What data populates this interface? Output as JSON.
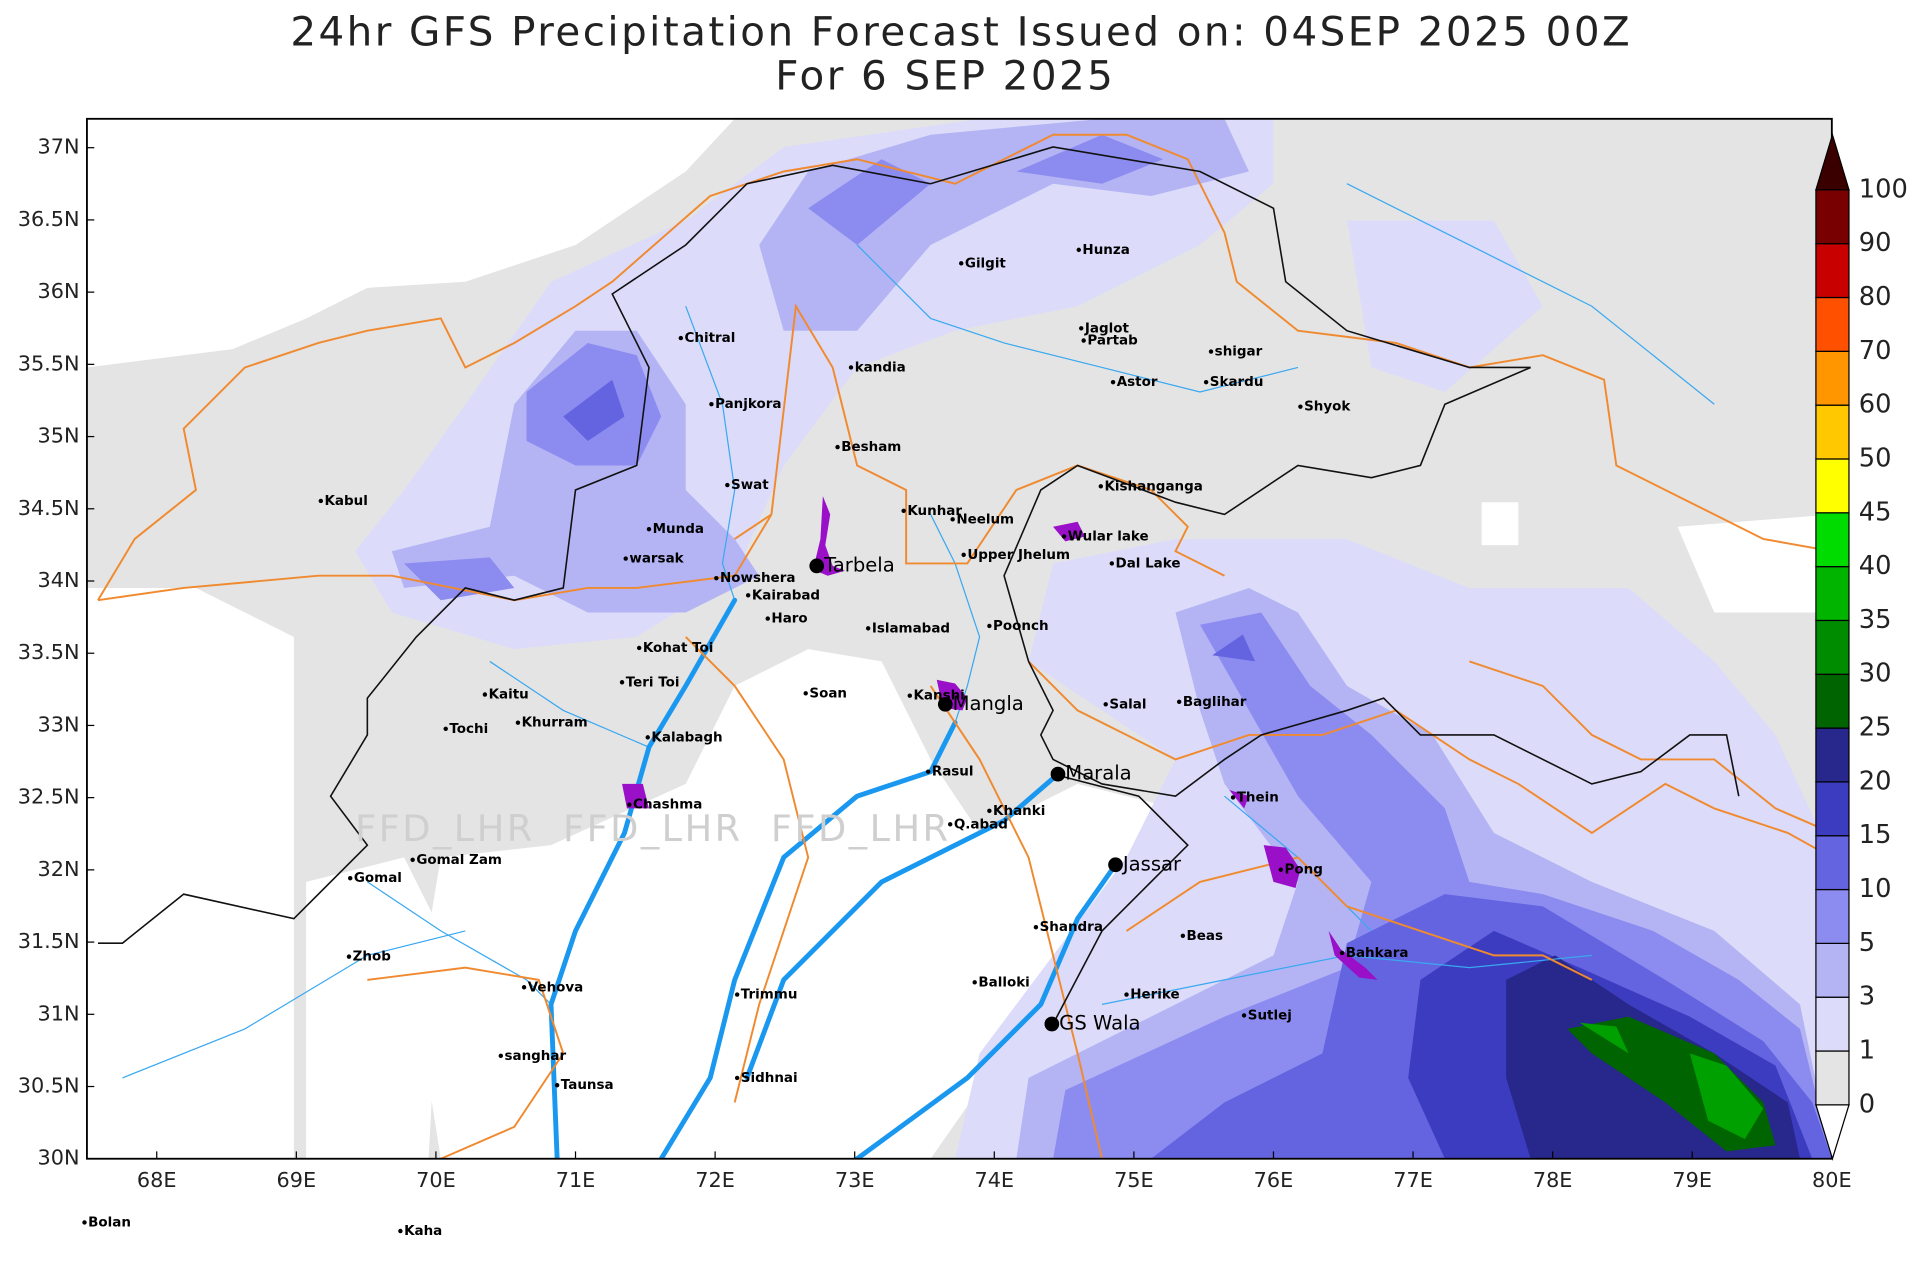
{
  "header": {
    "title": "24hr GFS Precipitation Forecast Issued on:  04SEP 2025 00Z",
    "subtitle": "For 6 SEP 2025"
  },
  "watermark": "FFD_LHR  FFD_LHR  FFD_LHR",
  "map": {
    "xlim": [
      67.5,
      80
    ],
    "ylim": [
      30,
      37.2
    ],
    "xticks": [
      {
        "value": 68,
        "label": "68E"
      },
      {
        "value": 69,
        "label": "69E"
      },
      {
        "value": 70,
        "label": "70E"
      },
      {
        "value": 71,
        "label": "71E"
      },
      {
        "value": 72,
        "label": "72E"
      },
      {
        "value": 73,
        "label": "73E"
      },
      {
        "value": 74,
        "label": "74E"
      },
      {
        "value": 75,
        "label": "75E"
      },
      {
        "value": 76,
        "label": "76E"
      },
      {
        "value": 77,
        "label": "77E"
      },
      {
        "value": 78,
        "label": "78E"
      },
      {
        "value": 79,
        "label": "79E"
      },
      {
        "value": 80,
        "label": "80E"
      }
    ],
    "yticks": [
      {
        "value": 30,
        "label": "30N"
      },
      {
        "value": 30.5,
        "label": "30.5N"
      },
      {
        "value": 31,
        "label": "31N"
      },
      {
        "value": 31.5,
        "label": "31.5N"
      },
      {
        "value": 32,
        "label": "32N"
      },
      {
        "value": 32.5,
        "label": "32.5N"
      },
      {
        "value": 33,
        "label": "33N"
      },
      {
        "value": 33.5,
        "label": "33.5N"
      },
      {
        "value": 34,
        "label": "34N"
      },
      {
        "value": 34.5,
        "label": "34.5N"
      },
      {
        "value": 35,
        "label": "35N"
      },
      {
        "value": 35.5,
        "label": "35.5N"
      },
      {
        "value": 36,
        "label": "36N"
      },
      {
        "value": 36.5,
        "label": "36.5N"
      },
      {
        "value": 37,
        "label": "37N"
      }
    ]
  },
  "colorbar": {
    "levels": [
      0,
      1,
      3,
      5,
      10,
      15,
      20,
      25,
      30,
      35,
      40,
      45,
      50,
      60,
      70,
      80,
      90,
      100
    ],
    "colors": [
      "#e4e4e4",
      "#dcdcfa",
      "#b4b4f5",
      "#8c8cf0",
      "#6464e0",
      "#3c3cc0",
      "#28288c",
      "#006400",
      "#008c00",
      "#00b400",
      "#00dc00",
      "#ffff00",
      "#ffc800",
      "#ff9600",
      "#ff5000",
      "#c80000",
      "#780000"
    ],
    "under_color": "#ffffff",
    "over_color": "#3a0000"
  },
  "places": [
    "Kabul",
    "Chitral",
    "Panjkora",
    "Swat",
    "Munda",
    "warsak",
    "Nowshera",
    "Kairabad",
    "Haro",
    "Kohat Toi",
    "Teri Toi",
    "Kaitu",
    "Tochi",
    "Khurram",
    "Kalabagh",
    "Chashma",
    "Gomal Zam",
    "Gomal",
    "Zhob",
    "Vehova",
    "sanghar",
    "Taunsa",
    "Gilgit",
    "Hunza",
    "Jaglot",
    "Partab",
    "Astor",
    "shigar",
    "Skardu",
    "Shyok",
    "kandia",
    "Besham",
    "Kunhar",
    "Neelum",
    "Kishanganga",
    "Wular lake",
    "Dal Lake",
    "Upper Jhelum",
    "Poonch",
    "Islamabad",
    "Soan",
    "Kanshi",
    "Salal",
    "Baglihar",
    "Rasul",
    "Khanki",
    "Q.abad",
    "Thein",
    "Pong",
    "Shandra",
    "Beas",
    "Bahkara",
    "Balloki",
    "Herike",
    "Sutlej",
    "Trimmu",
    "Sidhnai",
    "Bolan",
    "Kaha"
  ],
  "dams": [
    "Tarbela",
    "Mangla",
    "Marala",
    "Jassar",
    "GS Wala"
  ]
}
